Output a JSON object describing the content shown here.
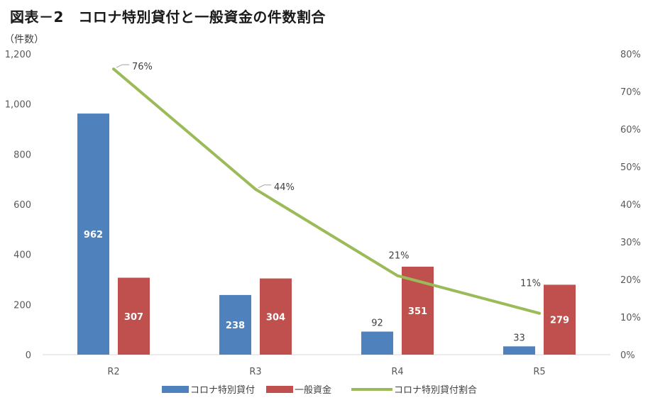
{
  "title": "図表－2　コロナ特別貸付と一般資金の件数割合",
  "chart_data": {
    "type": "bar",
    "categories": [
      "R2",
      "R3",
      "R4",
      "R5"
    ],
    "y_unit_label": "（件数）",
    "ylim": [
      0,
      1200
    ],
    "yticks": [
      "0",
      "200",
      "400",
      "600",
      "800",
      "1,000",
      "1,200"
    ],
    "y2lim": [
      0,
      80
    ],
    "y2ticks": [
      "0%",
      "10%",
      "20%",
      "30%",
      "40%",
      "50%",
      "60%",
      "70%",
      "80%"
    ],
    "series": [
      {
        "name": "コロナ特別貸付",
        "type": "bar",
        "color": "#4f81bd",
        "values": [
          962,
          238,
          92,
          33
        ],
        "labels": [
          "962",
          "238",
          "92",
          "33"
        ]
      },
      {
        "name": "一般資金",
        "type": "bar",
        "color": "#c0504d",
        "values": [
          307,
          304,
          351,
          279
        ],
        "labels": [
          "307",
          "304",
          "351",
          "279"
        ]
      },
      {
        "name": "コロナ特別貸付割合",
        "type": "line",
        "axis": "right",
        "color": "#9bbb59",
        "values": [
          76,
          44,
          21,
          11
        ],
        "labels": [
          "76%",
          "44%",
          "21%",
          "11%"
        ]
      }
    ],
    "grid": false,
    "legend": "bottom"
  }
}
